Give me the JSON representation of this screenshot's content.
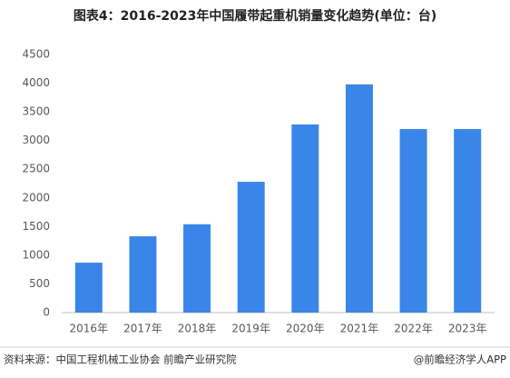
{
  "chart_data": {
    "type": "bar",
    "title": "图表4：2016-2023年中国履带起重机销量变化趋势(单位：台)",
    "categories": [
      "2016年",
      "2017年",
      "2018年",
      "2019年",
      "2020年",
      "2021年",
      "2022年",
      "2023年"
    ],
    "values": [
      870,
      1330,
      1540,
      2280,
      3280,
      3980,
      3200,
      3200
    ],
    "color": "#3a86e8",
    "ylim": [
      0,
      4500
    ],
    "yticks": [
      0,
      500,
      1000,
      1500,
      2000,
      2500,
      3000,
      3500,
      4000,
      4500
    ],
    "grid": false,
    "source": "资料来源：中国工程机械工业协会 前瞻产业研究院",
    "credit": "@前瞻经济学人APP"
  }
}
